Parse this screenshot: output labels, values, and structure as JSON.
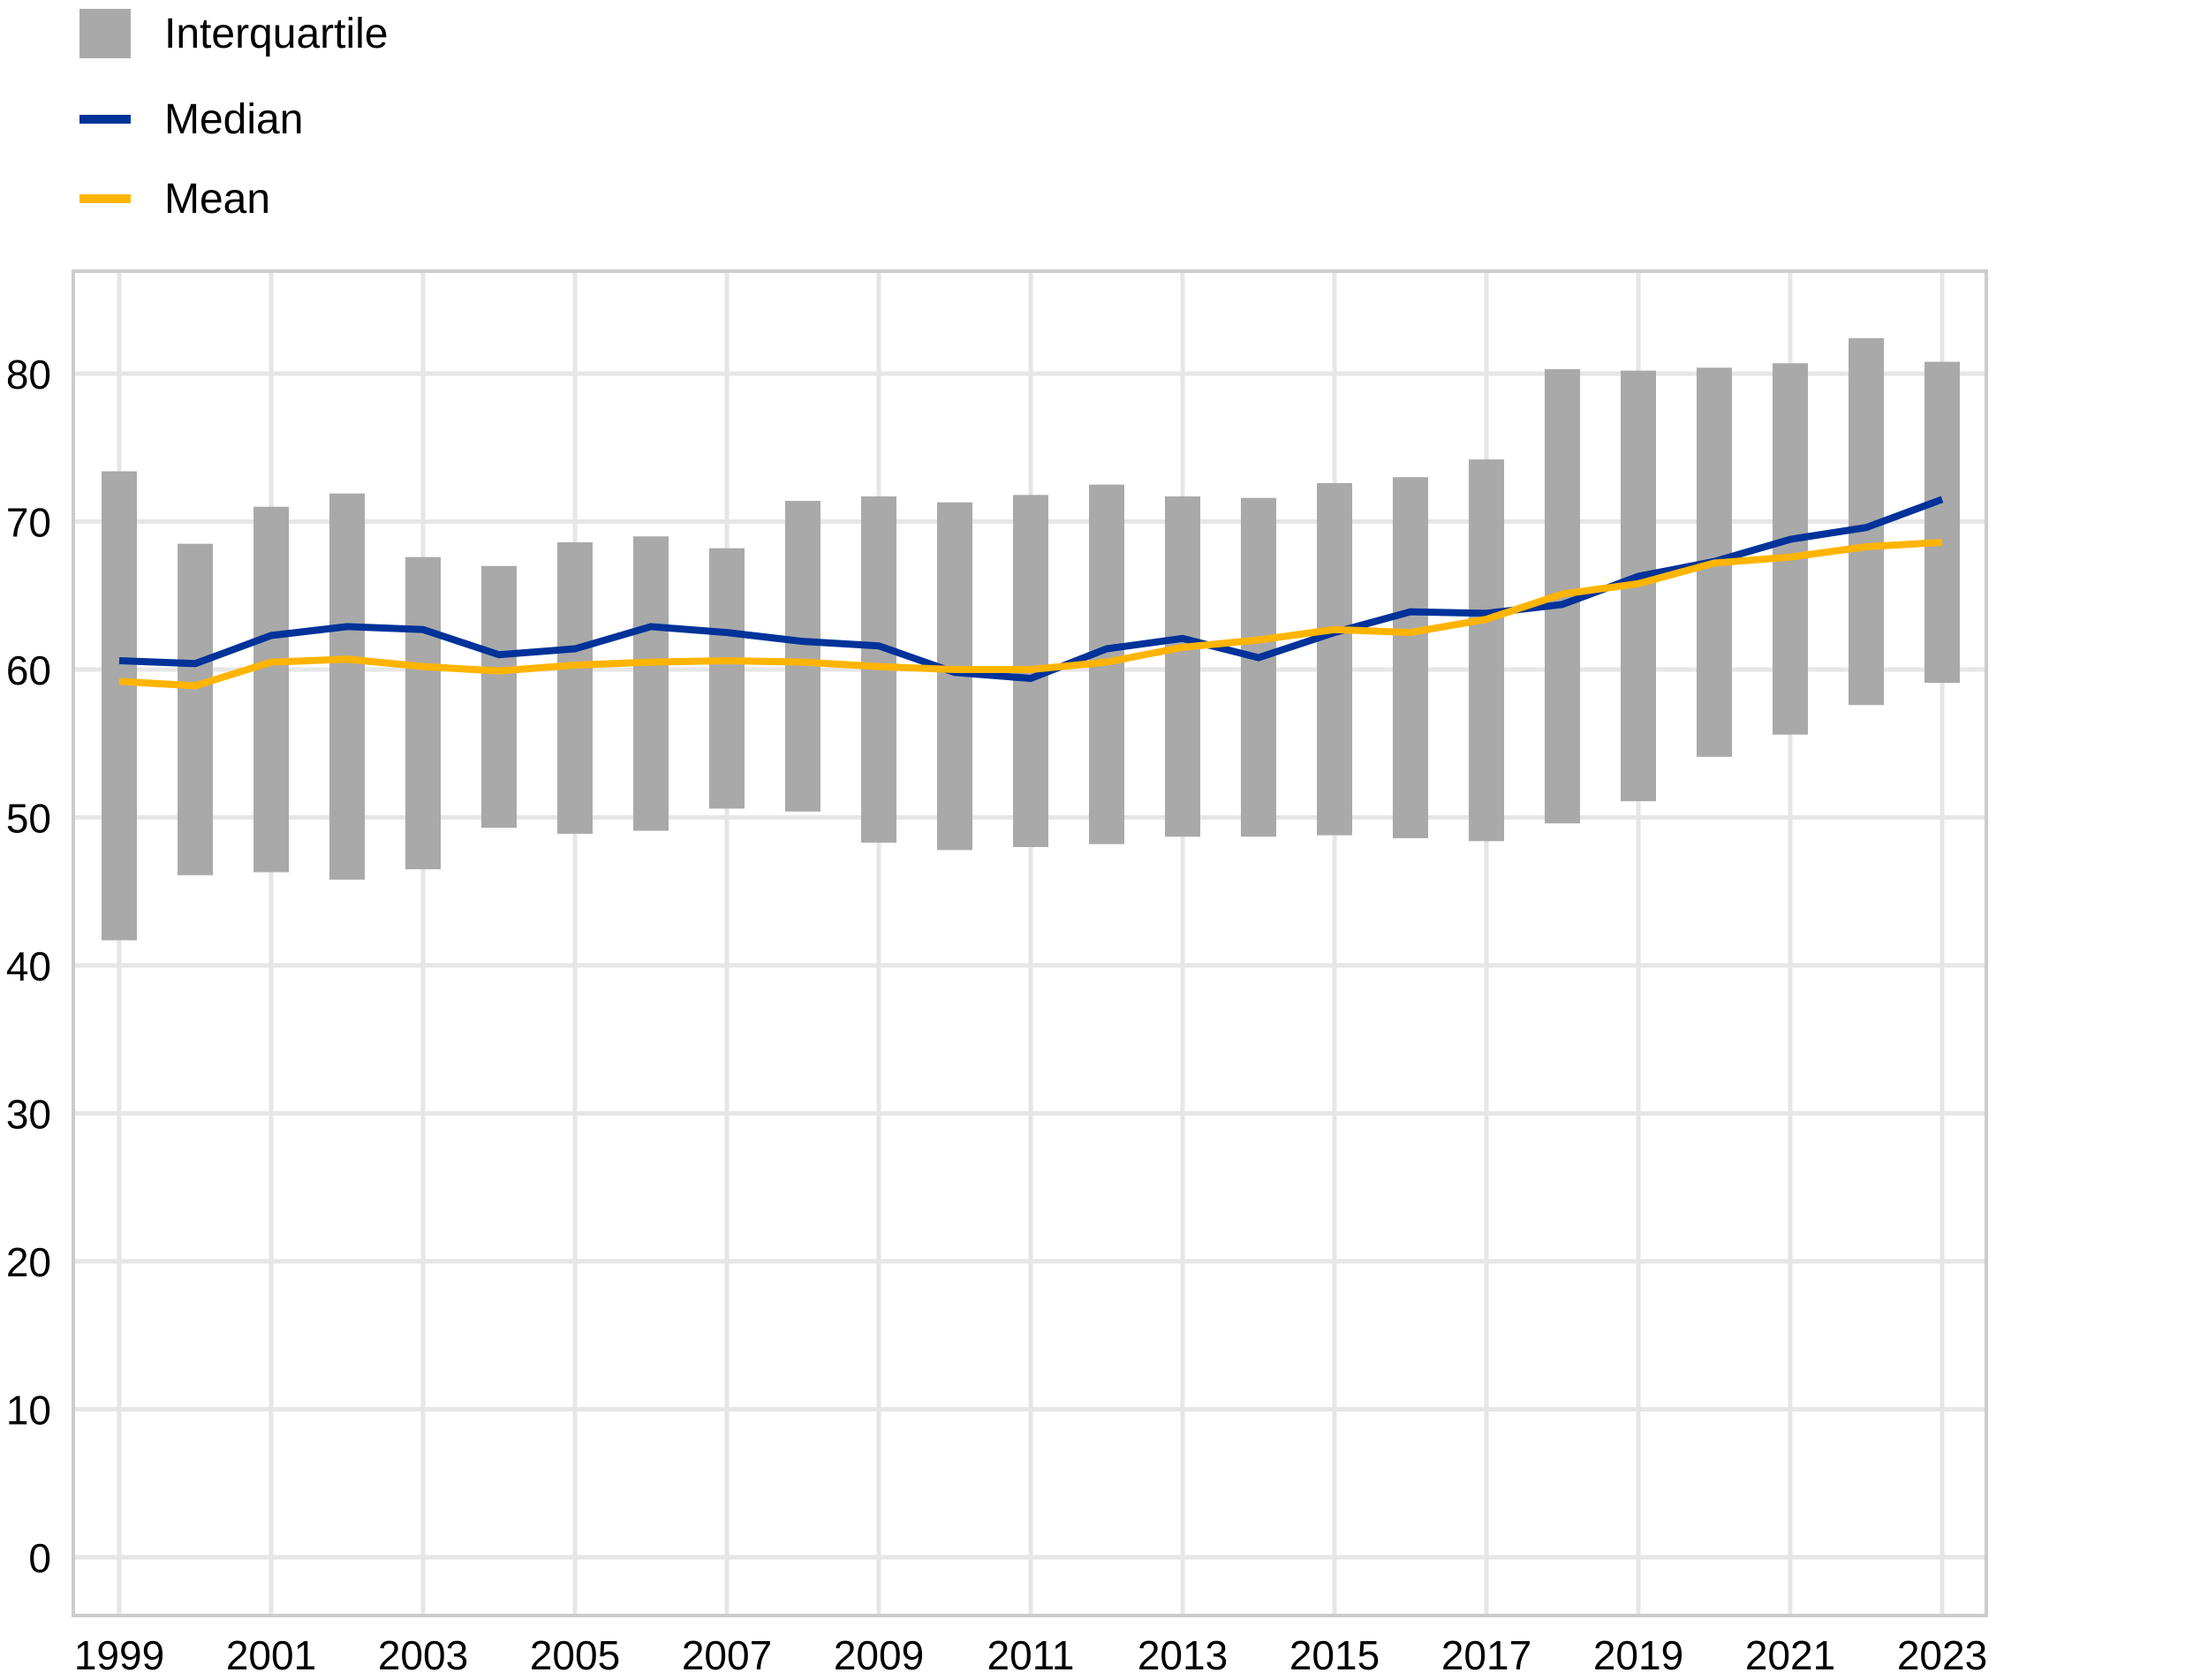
{
  "chart_data": {
    "type": "bar",
    "subtype": "floating-range-bars-with-lines",
    "title": "",
    "xlabel": "",
    "ylabel": "",
    "ylim": [
      -4,
      87
    ],
    "yticks": [
      0,
      10,
      20,
      30,
      40,
      50,
      60,
      70,
      80
    ],
    "ytick_labels": [
      "0",
      "10",
      "20",
      "30",
      "40",
      "50",
      "60",
      "70",
      "80"
    ],
    "x": [
      1999,
      2000,
      2001,
      2002,
      2003,
      2004,
      2005,
      2006,
      2007,
      2008,
      2009,
      2010,
      2011,
      2012,
      2013,
      2014,
      2015,
      2016,
      2017,
      2018,
      2019,
      2020,
      2021,
      2022,
      2023
    ],
    "xtick_labels": [
      "1999",
      "2001",
      "2003",
      "2005",
      "2007",
      "2009",
      "2011",
      "2013",
      "2015",
      "2017",
      "2019",
      "2021",
      "2023"
    ],
    "xticks": [
      1999,
      2001,
      2003,
      2005,
      2007,
      2009,
      2011,
      2013,
      2015,
      2017,
      2019,
      2021,
      2023
    ],
    "grid": true,
    "legend_position": "top-left",
    "series": [
      {
        "name": "Interquartile",
        "kind": "range-bar",
        "color": "#a9a9a9",
        "low": [
          41.7,
          46.1,
          46.3,
          45.8,
          46.5,
          49.3,
          48.9,
          49.1,
          50.6,
          50.4,
          48.3,
          47.8,
          48.0,
          48.2,
          48.7,
          48.7,
          48.8,
          48.6,
          48.4,
          49.6,
          51.1,
          54.1,
          55.6,
          57.6,
          59.1
        ],
        "high": [
          73.4,
          68.5,
          71.0,
          71.9,
          67.6,
          67.0,
          68.6,
          69.0,
          68.2,
          71.4,
          71.7,
          71.3,
          71.8,
          72.5,
          71.7,
          71.6,
          72.6,
          73.0,
          74.2,
          80.3,
          80.2,
          80.4,
          80.7,
          82.4,
          80.8
        ]
      },
      {
        "name": "Median",
        "kind": "line",
        "color": "#003299",
        "values": [
          60.6,
          60.4,
          62.3,
          62.9,
          62.7,
          61.0,
          61.4,
          62.9,
          62.5,
          61.9,
          61.6,
          59.8,
          59.4,
          61.4,
          62.1,
          60.8,
          62.5,
          63.9,
          63.8,
          64.4,
          66.3,
          67.3,
          68.8,
          69.6,
          71.5
        ]
      },
      {
        "name": "Mean",
        "kind": "line",
        "color": "#ffb400",
        "values": [
          59.2,
          58.9,
          60.5,
          60.7,
          60.2,
          59.9,
          60.3,
          60.5,
          60.6,
          60.5,
          60.2,
          60.0,
          60.0,
          60.5,
          61.5,
          62.0,
          62.7,
          62.5,
          63.4,
          65.1,
          65.8,
          67.2,
          67.6,
          68.3,
          68.6
        ]
      }
    ]
  },
  "legend": {
    "items": [
      {
        "label": "Interquartile",
        "color": "#a9a9a9",
        "shape": "box"
      },
      {
        "label": "Median",
        "color": "#003299",
        "shape": "line"
      },
      {
        "label": "Mean",
        "color": "#ffb400",
        "shape": "line"
      }
    ]
  },
  "style": {
    "grid_color": "#e6e6e6",
    "frame_color": "#cccccc",
    "text_color": "#000000"
  }
}
